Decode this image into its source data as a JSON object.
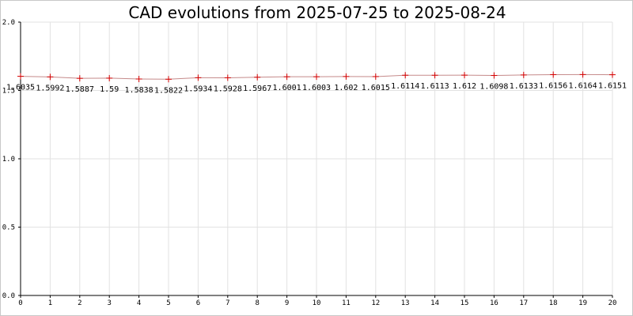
{
  "chart_data": {
    "type": "line",
    "title": "CAD evolutions from 2025-07-25 to 2025-08-24",
    "xlabel": "",
    "ylabel": "",
    "x": [
      0,
      1,
      2,
      3,
      4,
      5,
      6,
      7,
      8,
      9,
      10,
      11,
      12,
      13,
      14,
      15,
      16,
      17,
      18,
      19,
      20
    ],
    "series": [
      {
        "values": [
          1.6035,
          1.5992,
          1.5887,
          1.59,
          1.5838,
          1.5822,
          1.5934,
          1.5928,
          1.5967,
          1.6001,
          1.6003,
          1.602,
          1.6015,
          1.6114,
          1.6113,
          1.612,
          1.6098,
          1.6133,
          1.6156,
          1.6164,
          1.6151
        ],
        "labels": [
          "1.6035",
          "1.5992",
          "1.5887",
          "1.59",
          "1.5838",
          "1.5822",
          "1.5934",
          "1.5928",
          "1.5967",
          "1.6001",
          "1.6003",
          "1.602",
          "1.6015",
          "1.6114",
          "1.6113",
          "1.612",
          "1.6098",
          "1.6133",
          "1.6156",
          "1.6164",
          "1.6151"
        ],
        "color": "#d40000",
        "line_color": "#c58a8a"
      }
    ],
    "xlim": [
      0,
      20
    ],
    "ylim": [
      0.0,
      2.0
    ],
    "xticks": [
      "0",
      "1",
      "2",
      "3",
      "4",
      "5",
      "6",
      "7",
      "8",
      "9",
      "10",
      "11",
      "12",
      "13",
      "14",
      "15",
      "16",
      "17",
      "18",
      "19",
      "20"
    ],
    "yticks": [
      {
        "value": 0.0,
        "label": "0.0"
      },
      {
        "value": 0.5,
        "label": "0.5"
      },
      {
        "value": 1.0,
        "label": "1.0"
      },
      {
        "value": 1.5,
        "label": "1.5"
      },
      {
        "value": 2.0,
        "label": "2.0"
      }
    ],
    "grid": true,
    "legend": "none"
  }
}
